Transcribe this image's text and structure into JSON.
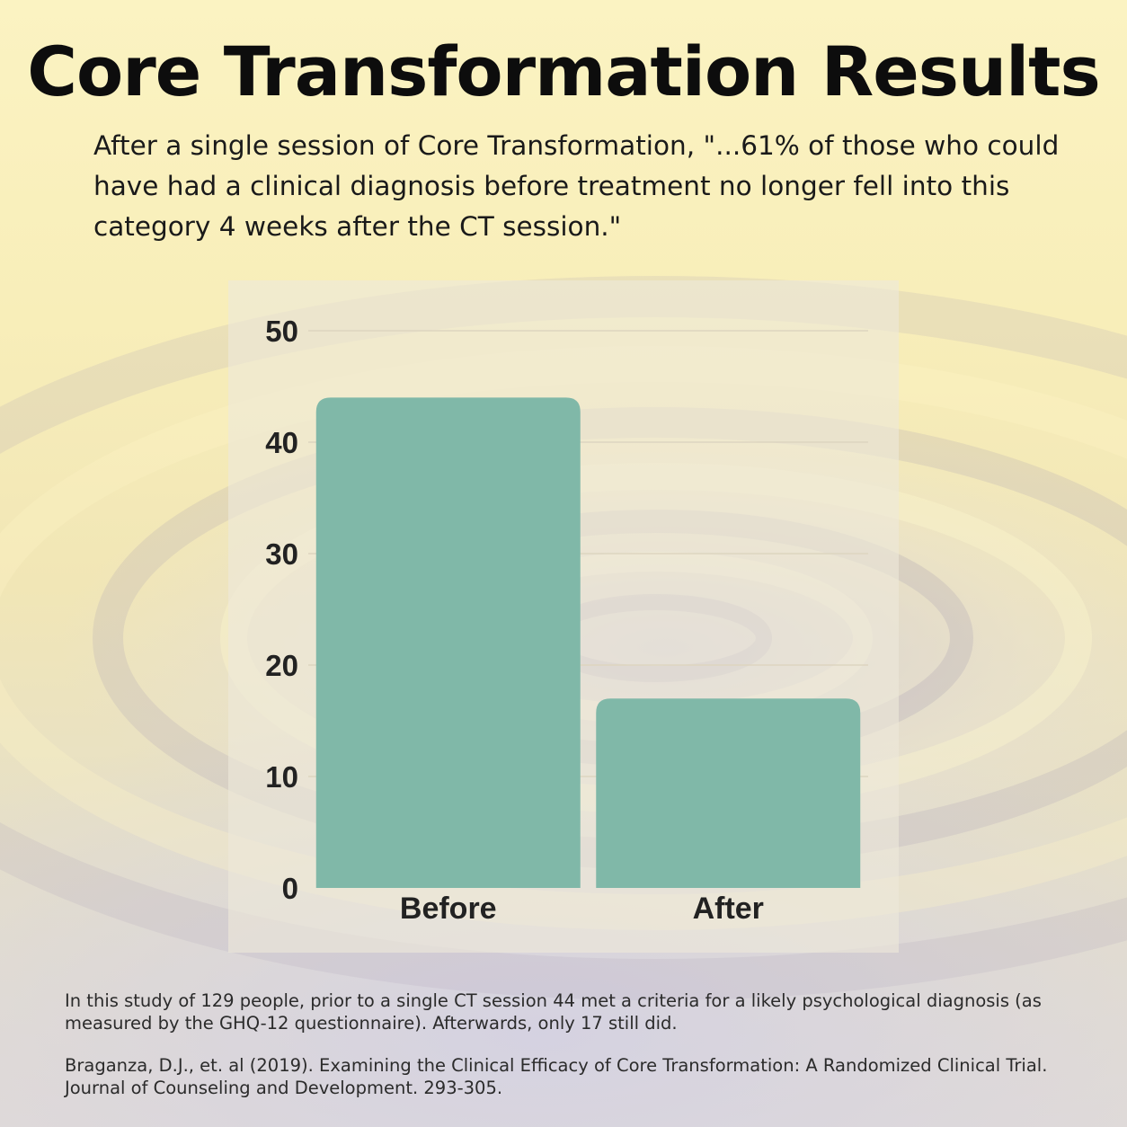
{
  "title": "Core Transformation Results",
  "quote": "After a single session of Core Transformation, \"...61% of those who could have had a clinical diagnosis before treatment no longer fell into this category 4 weeks after the CT session.\"",
  "chart_data": {
    "type": "bar",
    "categories": [
      "Before",
      "After"
    ],
    "values": [
      44,
      17
    ],
    "ylim": [
      0,
      50
    ],
    "yticks": [
      0,
      10,
      20,
      30,
      40,
      50
    ],
    "grid": true,
    "bar_color": "#80b8a8"
  },
  "footnote": {
    "note": "In this study of 129 people, prior to a single CT session 44 met a criteria for a likely psychological diagnosis (as measured by the GHQ-12 questionnaire). Afterwards, only 17 still did.",
    "citation": "Braganza, D.J., et. al (2019). Examining the Clinical Efficacy of Core Transformation: A Randomized Clinical Trial. Journal of Counseling and Development. 293-305."
  }
}
